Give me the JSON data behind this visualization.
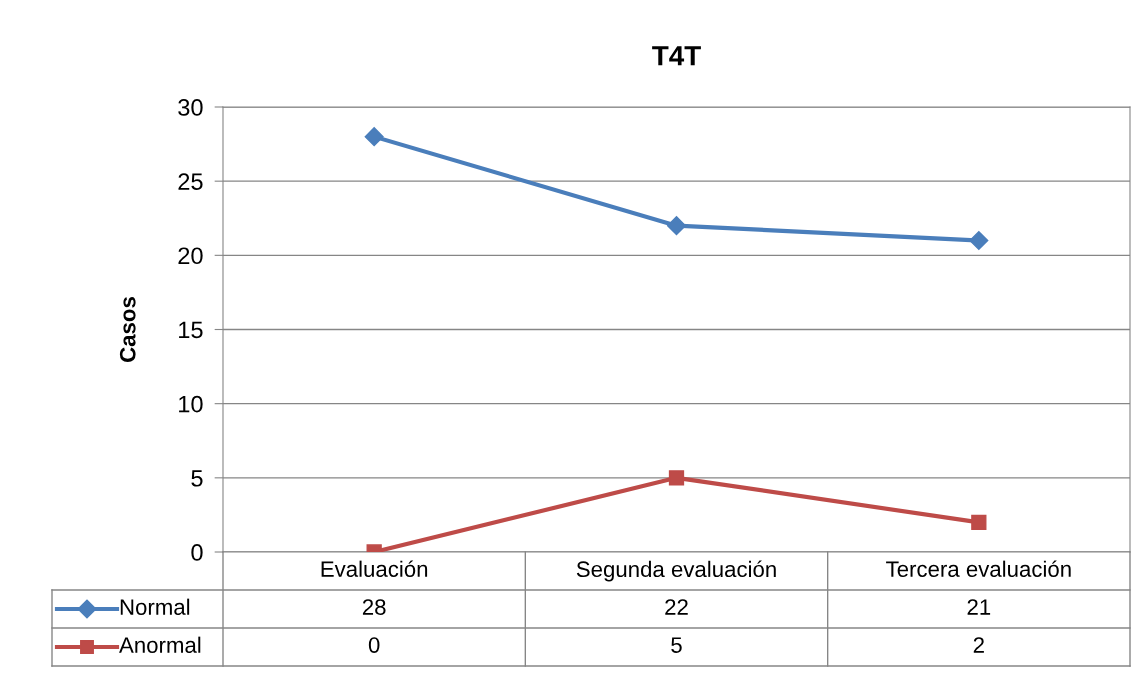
{
  "chart_data": {
    "type": "line",
    "title": "T4T",
    "ylabel": "Casos",
    "categories": [
      "Evaluación",
      "Segunda evaluación",
      "Tercera evaluación"
    ],
    "series": [
      {
        "name": "Normal",
        "color": "#4a7ebb",
        "marker": "diamond",
        "values": [
          28,
          22,
          21
        ]
      },
      {
        "name": "Anormal",
        "color": "#be4b48",
        "marker": "square",
        "values": [
          0,
          5,
          2
        ]
      }
    ],
    "ylim": [
      0,
      30
    ],
    "yticks": [
      0,
      5,
      10,
      15,
      20,
      25,
      30
    ],
    "grid": "y",
    "legend": "bottom",
    "data_labels": true
  }
}
